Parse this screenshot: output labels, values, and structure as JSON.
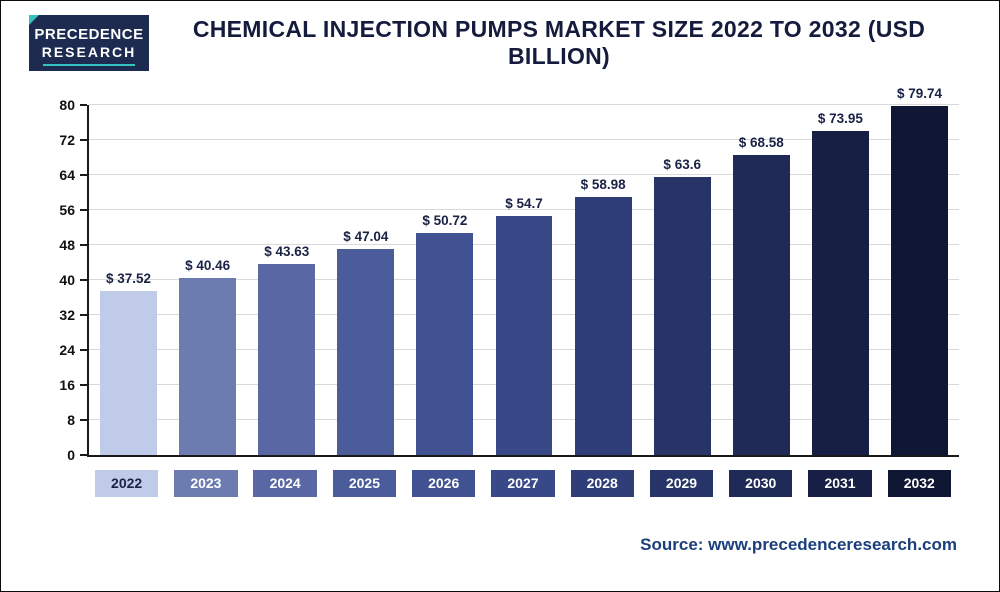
{
  "header": {
    "logo": {
      "line1": "PRECEDENCE",
      "line2": "RESEARCH"
    },
    "title": "CHEMICAL INJECTION PUMPS MARKET SIZE 2022 TO 2032 (USD BILLION)"
  },
  "chart_data": {
    "type": "bar",
    "title": "Chemical Injection Pumps Market Size 2022 to 2032 (USD Billion)",
    "categories": [
      "2022",
      "2023",
      "2024",
      "2025",
      "2026",
      "2027",
      "2028",
      "2029",
      "2030",
      "2031",
      "2032"
    ],
    "values": [
      37.52,
      40.46,
      43.63,
      47.04,
      50.72,
      54.7,
      58.98,
      63.6,
      68.58,
      73.95,
      79.74
    ],
    "value_labels": [
      "$ 37.52",
      "$ 40.46",
      "$ 43.63",
      "$ 47.04",
      "$ 50.72",
      "$ 54.7",
      "$ 58.98",
      "$ 63.6",
      "$ 68.58",
      "$ 73.95",
      "$ 79.74"
    ],
    "xlabel": "",
    "ylabel": "",
    "ylim": [
      0,
      80
    ],
    "yticks": [
      0,
      8,
      16,
      24,
      32,
      40,
      48,
      56,
      64,
      72,
      80
    ],
    "grid": "horizontal",
    "legend_position": "none",
    "bar_colors": [
      "#c0cbe9",
      "#6d7cb0",
      "#5968a5",
      "#4b5c9b",
      "#415292",
      "#394887",
      "#2f3e79",
      "#273467",
      "#1f2a57",
      "#171f45",
      "#101734"
    ],
    "chip_text_colors": [
      "#1a2246",
      "#ffffff",
      "#ffffff",
      "#ffffff",
      "#ffffff",
      "#ffffff",
      "#ffffff",
      "#ffffff",
      "#ffffff",
      "#ffffff",
      "#ffffff"
    ],
    "value_label_color": "#1a2246"
  },
  "footer": {
    "source": "Source: www.precedenceresearch.com"
  }
}
